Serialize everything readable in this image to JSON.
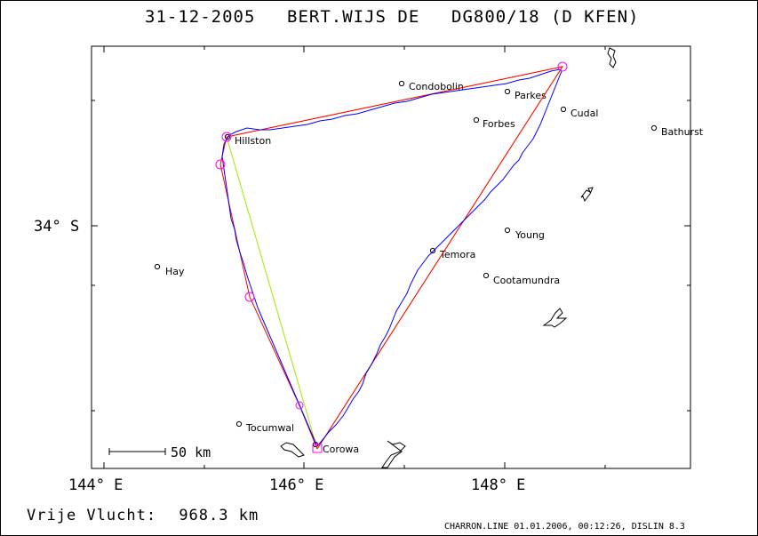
{
  "title": {
    "date": "31-12-2005",
    "pilot": "BERT.WIJS DE",
    "glider": "DG800/18 (D KFEN)"
  },
  "axes": {
    "x_ticks": [
      "144° E",
      "146° E",
      "148° E"
    ],
    "y_ticks": [
      "34° S"
    ]
  },
  "scale_bar": {
    "label": "50 km"
  },
  "towns": [
    {
      "name": "Condobolin"
    },
    {
      "name": "Parkes"
    },
    {
      "name": "Cudal"
    },
    {
      "name": "Forbes"
    },
    {
      "name": "Bathurst"
    },
    {
      "name": "Hillston"
    },
    {
      "name": "Young"
    },
    {
      "name": "Temora"
    },
    {
      "name": "Hay"
    },
    {
      "name": "Cootamundra"
    },
    {
      "name": "Tocumwal"
    },
    {
      "name": "Corowa"
    }
  ],
  "footer": {
    "distance_label": "Vrije Vlucht:",
    "distance_value": "968.3 km",
    "credit": "CHARRON.LINE 01.01.2006, 00:12:26, DISLIN 8.3"
  },
  "colors": {
    "track": "#0000ff",
    "course": "#ff0000",
    "optimized_course": "#ff9900",
    "closing_leg": "#99ee00",
    "turnpoint_marker": "#ff00ff",
    "frame": "#000000"
  }
}
